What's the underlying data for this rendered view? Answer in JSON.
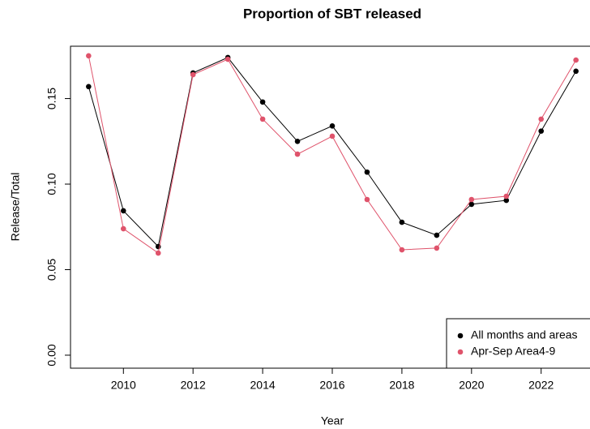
{
  "chart_data": {
    "type": "line",
    "title": "Proportion of SBT released",
    "x_label": "Year",
    "y_label": "Release/Total",
    "x": [
      2009,
      2010,
      2011,
      2012,
      2013,
      2014,
      2015,
      2016,
      2017,
      2018,
      2019,
      2020,
      2021,
      2022,
      2023
    ],
    "series": [
      {
        "name": "All months and areas",
        "color": "#000000",
        "values": [
          0.157,
          0.0844,
          0.0635,
          0.165,
          0.174,
          0.148,
          0.125,
          0.134,
          0.107,
          0.0777,
          0.0701,
          0.0882,
          0.0905,
          0.131,
          0.166
        ]
      },
      {
        "name": "Apr-Sep Area4-9",
        "color": "#DF536B",
        "values": [
          0.175,
          0.0739,
          0.0597,
          0.164,
          0.173,
          0.138,
          0.1175,
          0.128,
          0.091,
          0.0616,
          0.0626,
          0.091,
          0.0929,
          0.138,
          0.1725
        ]
      }
    ],
    "xlim": [
      2008.48,
      2023.52
    ],
    "xticks": [
      2010,
      2012,
      2014,
      2016,
      2018,
      2020,
      2022
    ],
    "ylim": [
      -0.0076,
      0.1806
    ],
    "yticks": [
      {
        "value": 0,
        "label": "0.00"
      },
      0.05,
      {
        "value": 0.1,
        "label": "0.10"
      },
      0.15
    ],
    "legend": "bottom-right",
    "grid": false
  }
}
